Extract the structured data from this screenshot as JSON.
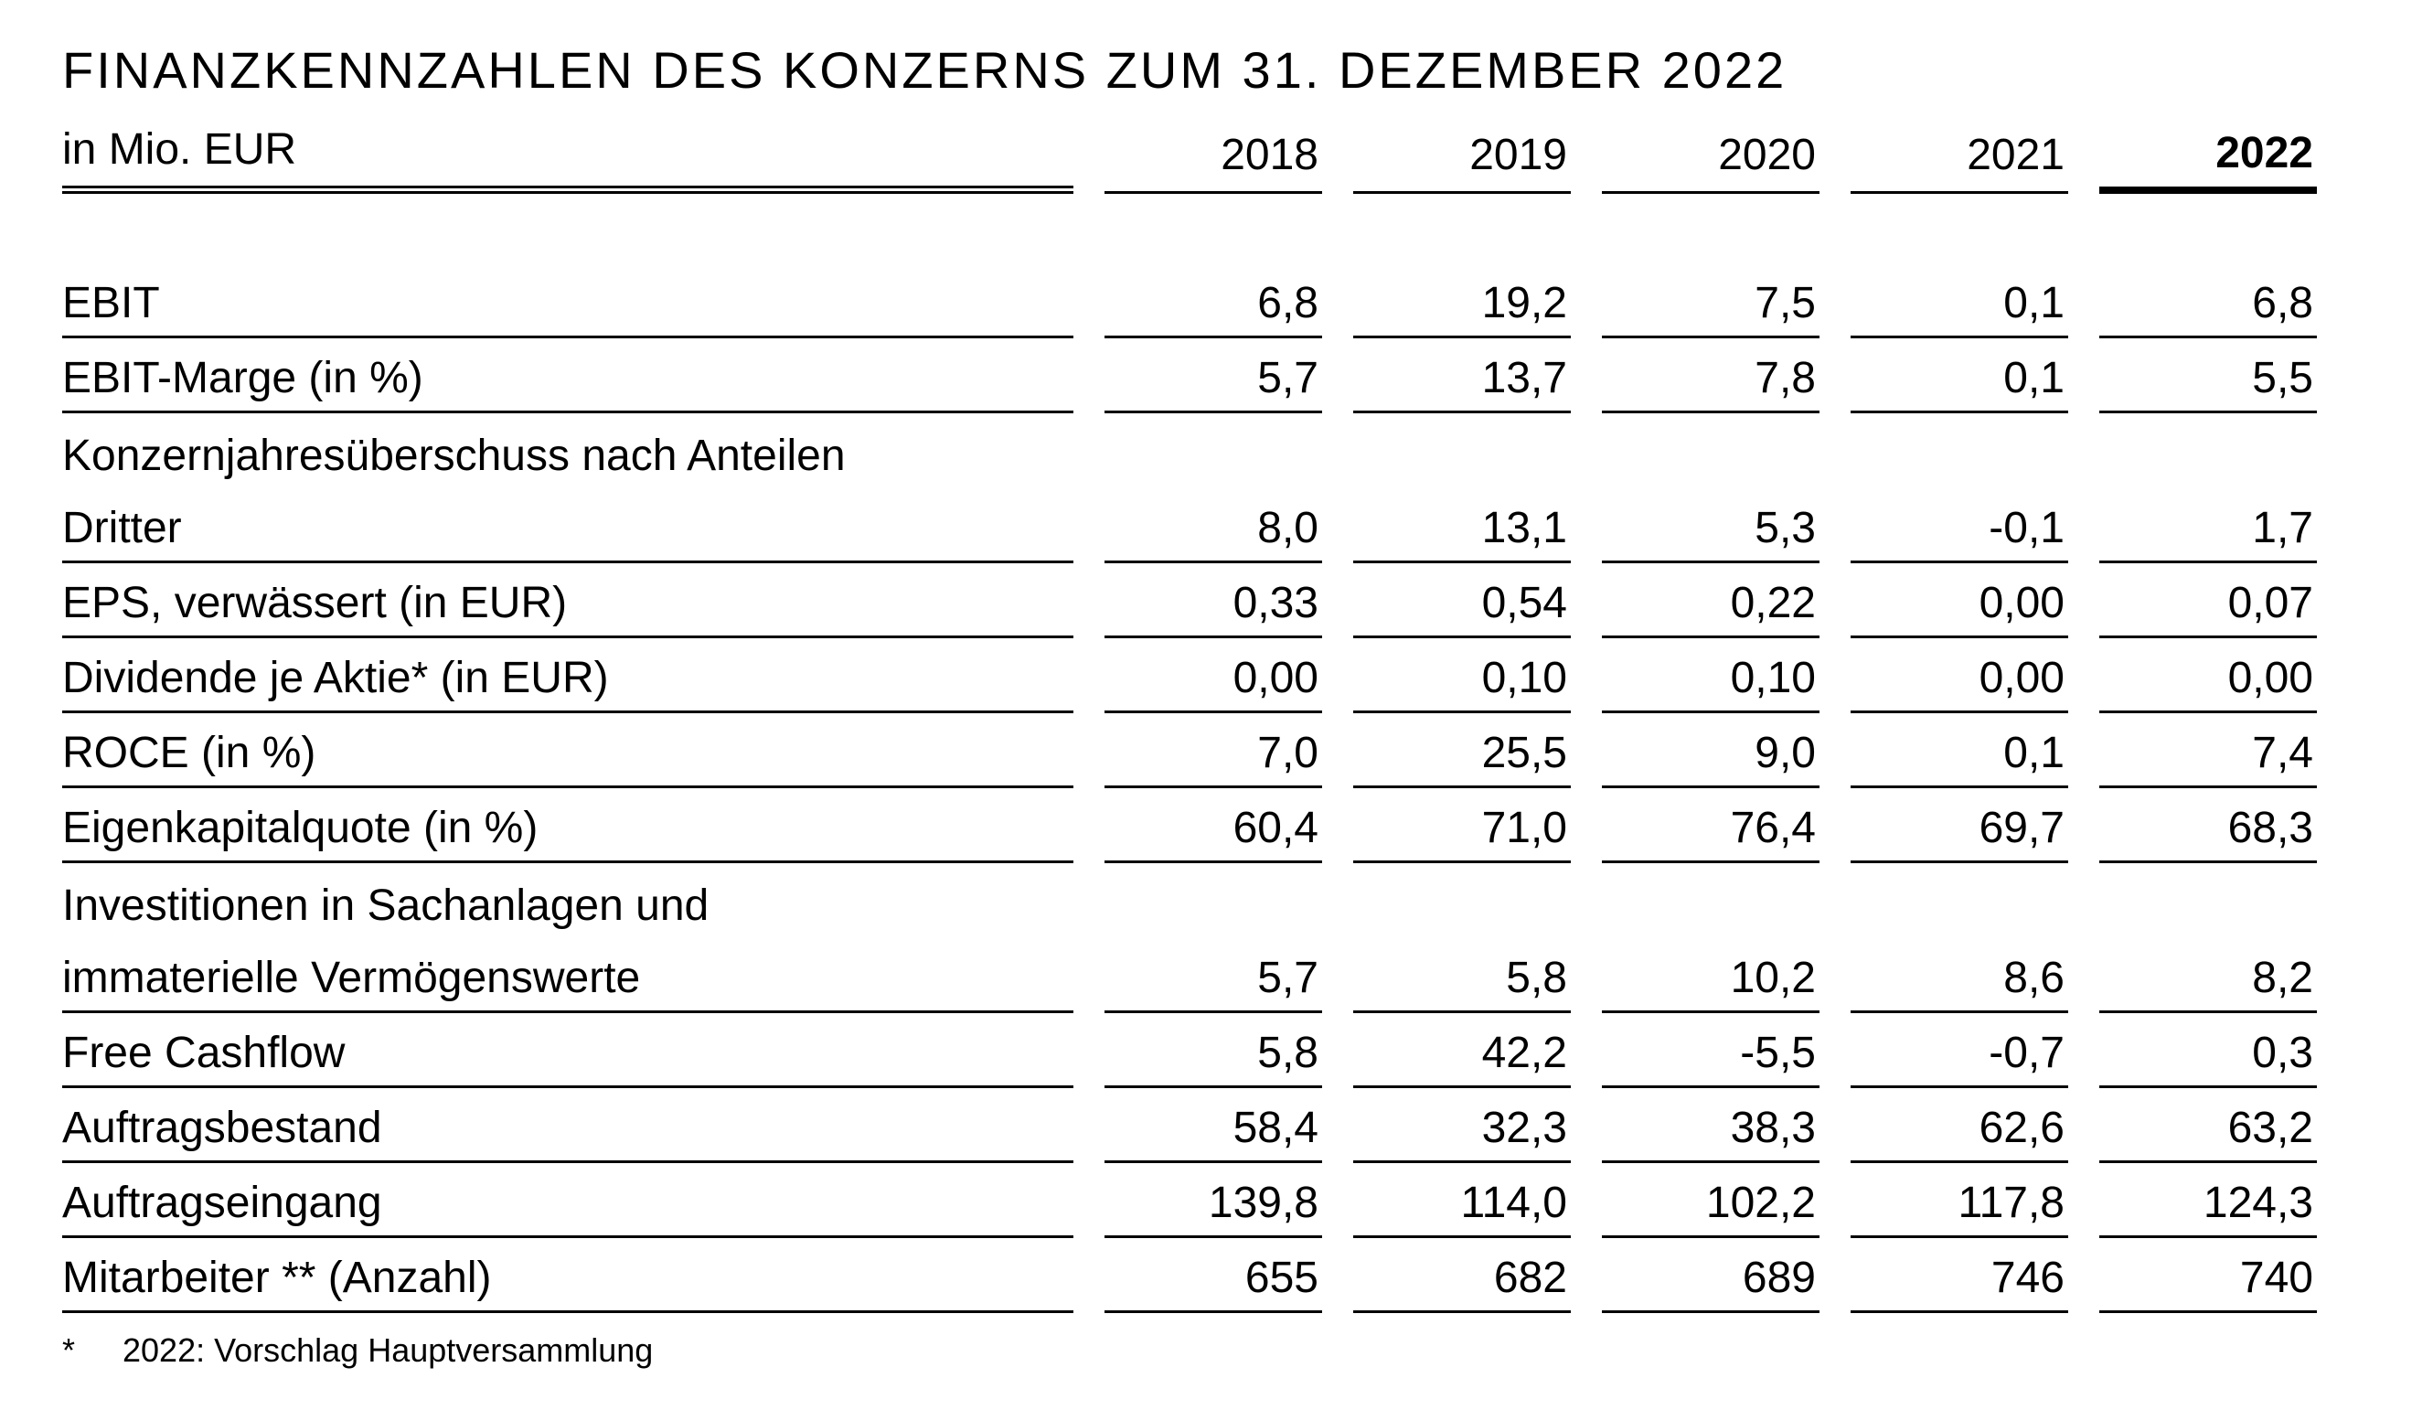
{
  "title": "FINANZKENNZAHLEN DES KONZERNS ZUM 31. DEZEMBER 2022",
  "table": {
    "unit_label": "in Mio. EUR",
    "years": [
      "2018",
      "2019",
      "2020",
      "2021",
      "2022"
    ],
    "emphasized_year": "2022",
    "rows": [
      {
        "label_lines": [
          "EBIT"
        ],
        "values": [
          "6,8",
          "19,2",
          "7,5",
          "0,1",
          "6,8"
        ]
      },
      {
        "label_lines": [
          "EBIT-Marge (in %)"
        ],
        "values": [
          "5,7",
          "13,7",
          "7,8",
          "0,1",
          "5,5"
        ]
      },
      {
        "label_lines": [
          "Konzernjahresüberschuss nach Anteilen",
          "Dritter"
        ],
        "values": [
          "8,0",
          "13,1",
          "5,3",
          "-0,1",
          "1,7"
        ]
      },
      {
        "label_lines": [
          "EPS, verwässert (in EUR)"
        ],
        "values": [
          "0,33",
          "0,54",
          "0,22",
          "0,00",
          "0,07"
        ]
      },
      {
        "label_lines": [
          "Dividende je Aktie* (in EUR)"
        ],
        "values": [
          "0,00",
          "0,10",
          "0,10",
          "0,00",
          "0,00"
        ]
      },
      {
        "label_lines": [
          "ROCE (in %)"
        ],
        "values": [
          "7,0",
          "25,5",
          "9,0",
          "0,1",
          "7,4"
        ]
      },
      {
        "label_lines": [
          "Eigenkapitalquote (in %)"
        ],
        "values": [
          "60,4",
          "71,0",
          "76,4",
          "69,7",
          "68,3"
        ]
      },
      {
        "label_lines": [
          "Investitionen in Sachanlagen und",
          "immaterielle Vermögenswerte"
        ],
        "values": [
          "5,7",
          "5,8",
          "10,2",
          "8,6",
          "8,2"
        ]
      },
      {
        "label_lines": [
          "Free Cashflow"
        ],
        "values": [
          "5,8",
          "42,2",
          "-5,5",
          "-0,7",
          "0,3"
        ]
      },
      {
        "label_lines": [
          "Auftragsbestand"
        ],
        "values": [
          "58,4",
          "32,3",
          "38,3",
          "62,6",
          "63,2"
        ]
      },
      {
        "label_lines": [
          "Auftragseingang"
        ],
        "values": [
          "139,8",
          "114,0",
          "102,2",
          "117,8",
          "124,3"
        ]
      },
      {
        "label_lines": [
          "Mitarbeiter ** (Anzahl)"
        ],
        "values": [
          "655",
          "682",
          "689",
          "746",
          "740"
        ]
      }
    ]
  },
  "footnote": {
    "marker": "*",
    "text": "2022: Vorschlag Hauptversammlung"
  }
}
